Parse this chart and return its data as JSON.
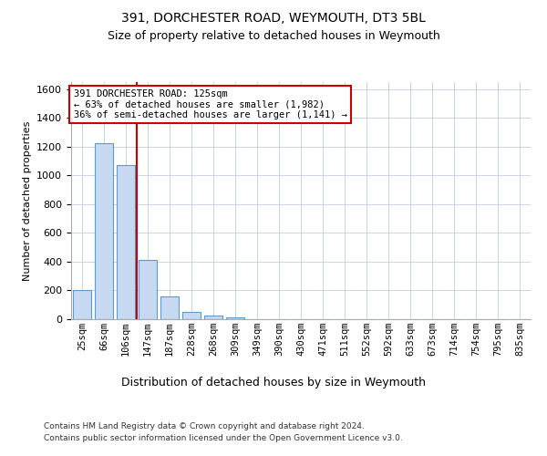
{
  "title1": "391, DORCHESTER ROAD, WEYMOUTH, DT3 5BL",
  "title2": "Size of property relative to detached houses in Weymouth",
  "xlabel": "Distribution of detached houses by size in Weymouth",
  "ylabel": "Number of detached properties",
  "bar_labels": [
    "25sqm",
    "66sqm",
    "106sqm",
    "147sqm",
    "187sqm",
    "228sqm",
    "268sqm",
    "309sqm",
    "349sqm",
    "390sqm",
    "430sqm",
    "471sqm",
    "511sqm",
    "552sqm",
    "592sqm",
    "633sqm",
    "673sqm",
    "714sqm",
    "754sqm",
    "795sqm",
    "835sqm"
  ],
  "bar_values": [
    200,
    1225,
    1075,
    410,
    160,
    50,
    25,
    15,
    0,
    0,
    0,
    0,
    0,
    0,
    0,
    0,
    0,
    0,
    0,
    0,
    0
  ],
  "bar_color": "#c6d9f0",
  "bar_edge_color": "#5b9bd5",
  "vline_x": 2.5,
  "vline_color": "#cc0000",
  "ylim": [
    0,
    1650
  ],
  "yticks": [
    0,
    200,
    400,
    600,
    800,
    1000,
    1200,
    1400,
    1600
  ],
  "annotation_text": "391 DORCHESTER ROAD: 125sqm\n← 63% of detached houses are smaller (1,982)\n36% of semi-detached houses are larger (1,141) →",
  "annotation_box_color": "#ffffff",
  "annotation_box_edge": "#cc0000",
  "footnote1": "Contains HM Land Registry data © Crown copyright and database right 2024.",
  "footnote2": "Contains public sector information licensed under the Open Government Licence v3.0.",
  "background_color": "#ffffff",
  "grid_color": "#c8d4e8"
}
